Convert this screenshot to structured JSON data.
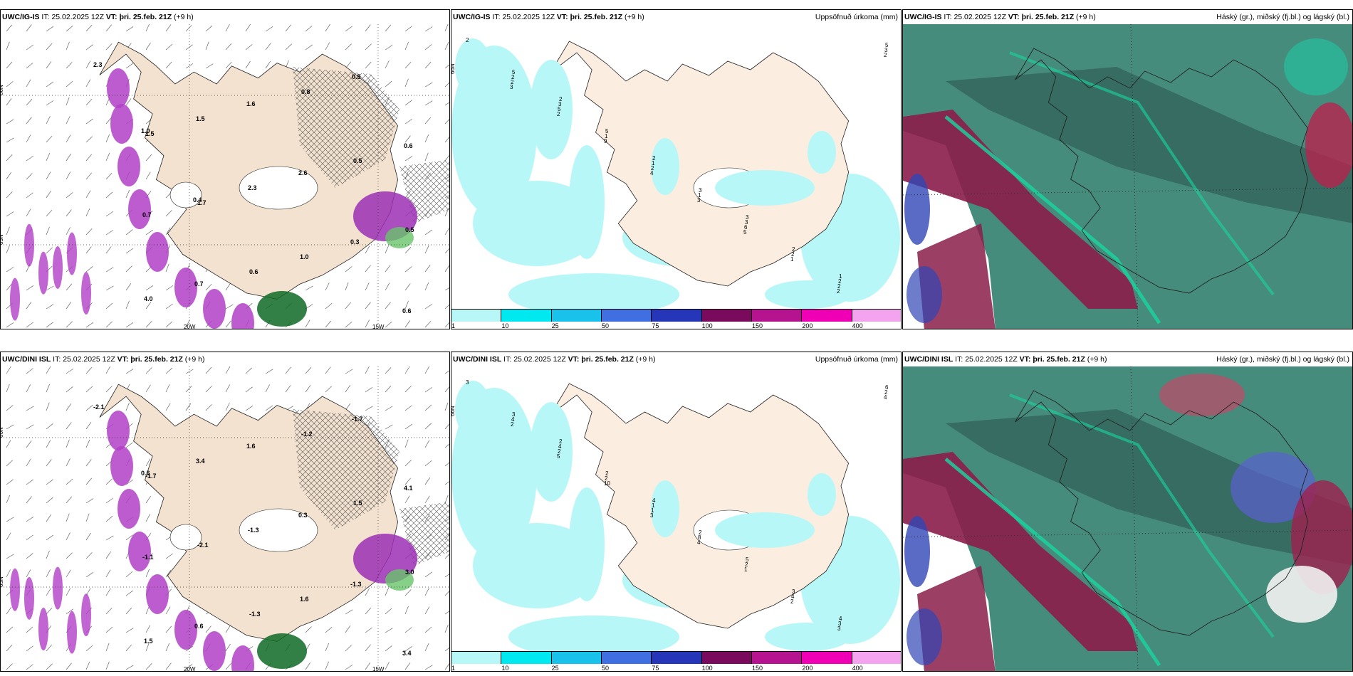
{
  "panels": [
    {
      "model": "UWC/IG-IS",
      "it_label": "IT:",
      "it": "25.02.2025 12Z",
      "vt_label": "VT:",
      "vt": "þri. 25.feb. 21Z",
      "lead": "(+9 h)",
      "right": ""
    },
    {
      "model": "UWC/IG-IS",
      "it_label": "IT:",
      "it": "25.02.2025 12Z",
      "vt_label": "VT:",
      "vt": "þri. 25.feb. 21Z",
      "lead": "(+9 h)",
      "right": "Uppsöfnuð úrkoma (mm)"
    },
    {
      "model": "UWC/IG-IS",
      "it_label": "IT:",
      "it": "25.02.2025 12Z",
      "vt_label": "VT:",
      "vt": "þri. 25.feb. 21Z",
      "lead": "(+9 h)",
      "right": "Háský (gr.), miðský (fj.bl.) og lágský (bl.)"
    },
    {
      "model": "UWC/DINI ISL",
      "it_label": "IT:",
      "it": "25.02.2025 12Z",
      "vt_label": "VT:",
      "vt": "þri. 25.feb. 21Z",
      "lead": "(+9 h)",
      "right": ""
    },
    {
      "model": "UWC/DINI ISL",
      "it_label": "IT:",
      "it": "25.02.2025 12Z",
      "vt_label": "VT:",
      "vt": "þri. 25.feb. 21Z",
      "lead": "(+9 h)",
      "right": "Uppsöfnuð úrkoma (mm)"
    },
    {
      "model": "UWC/DINI ISL",
      "it_label": "IT:",
      "it": "25.02.2025 12Z",
      "vt_label": "VT:",
      "vt": "þri. 25.feb. 21Z",
      "lead": "(+9 h)",
      "right": "Háský (gr.), miðský (fj.bl.) og lágský (bl.)"
    }
  ],
  "axes": {
    "lat_66": "66N",
    "lat_65": "65N",
    "lat_64": "64N",
    "lon_20": "20W",
    "lon_15": "15W"
  },
  "legend": {
    "ticks": [
      "1",
      "10",
      "25",
      "50",
      "75",
      "100",
      "150",
      "200",
      "400"
    ],
    "colors": [
      "#b8f7f7",
      "#00e8f0",
      "#19c2ea",
      "#3f6fe0",
      "#2636b8",
      "#7a0a5c",
      "#b5138f",
      "#f000b4",
      "#f4a4ef"
    ]
  },
  "precip_labels_top": [
    "2",
    "2",
    "2",
    "3",
    "1",
    "5",
    "5",
    "3",
    "2",
    "5",
    "3",
    "1",
    "3",
    "2",
    "2",
    "1",
    "1",
    "2",
    "3",
    "5",
    "2",
    "6",
    "2",
    "2",
    "9",
    "3",
    "1",
    "2",
    "2",
    "4",
    "5",
    "2",
    "3"
  ],
  "precip_labels_bottom": [
    "3",
    "2",
    "4",
    "5",
    "4",
    "3",
    "2",
    "2",
    "3",
    "6",
    "4",
    "1",
    "2",
    "3",
    "4",
    "2",
    "8",
    "4",
    "2",
    "2",
    "1",
    "1",
    "3",
    "2",
    "10",
    "4",
    "2",
    "4",
    "5",
    "3"
  ],
  "temp_labels_top": [
    "2.3",
    "1.5",
    "1.7",
    "0.6",
    "0.8",
    "0.5",
    "0.5",
    "4.0",
    "1.5",
    "2.3",
    "1.0",
    "0.5",
    "0.6",
    "0.7",
    "0.7",
    "1.6",
    "2.6",
    "0.3",
    "0.6",
    "1.0",
    "0.4"
  ],
  "temp_labels_bottom": [
    "-2.1",
    "-1.7",
    "-2.1",
    "-1.3",
    "-1.2",
    "1.5",
    "3.0",
    "1.5",
    "3.4",
    "-1.3",
    "1.6",
    "-1.7",
    "4.1",
    "-1.1",
    "0.6",
    "1.6",
    "0.3",
    "-1.3",
    "3.4",
    "0.6"
  ]
}
